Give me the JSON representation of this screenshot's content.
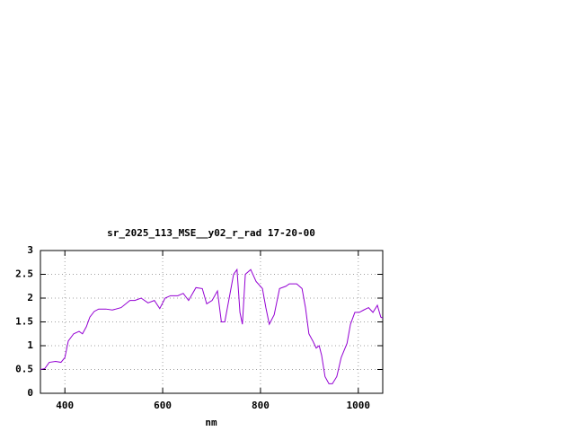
{
  "chart_data": {
    "type": "line",
    "title": "sr_2025_113_MSE__y02_r_rad 17-20-00",
    "x_label": "nm",
    "x": [
      350,
      359,
      368,
      381,
      392,
      400,
      407,
      418,
      429,
      436,
      444,
      451,
      460,
      469,
      484,
      497,
      515,
      533,
      543,
      556,
      570,
      583,
      594,
      605,
      616,
      631,
      642,
      653,
      668,
      681,
      690,
      701,
      712,
      720,
      727,
      736,
      745,
      752,
      758,
      763,
      769,
      780,
      791,
      804,
      811,
      818,
      828,
      839,
      852,
      859,
      874,
      885,
      892,
      899,
      907,
      914,
      920,
      925,
      932,
      940,
      947,
      956,
      965,
      977,
      984,
      993,
      1002,
      1011,
      1021,
      1030,
      1039,
      1046,
      1050
    ],
    "series": [
      {
        "color": "#9400d3",
        "values": [
          0.5,
          0.52,
          0.65,
          0.67,
          0.65,
          0.75,
          1.1,
          1.25,
          1.3,
          1.25,
          1.4,
          1.6,
          1.72,
          1.77,
          1.77,
          1.75,
          1.8,
          1.95,
          1.95,
          2.0,
          1.9,
          1.95,
          1.78,
          2.0,
          2.05,
          2.05,
          2.1,
          1.95,
          2.22,
          2.2,
          1.88,
          1.95,
          2.15,
          1.5,
          1.5,
          2.0,
          2.5,
          2.6,
          1.7,
          1.45,
          2.5,
          2.6,
          2.35,
          2.2,
          1.8,
          1.45,
          1.65,
          2.2,
          2.25,
          2.3,
          2.3,
          2.2,
          1.8,
          1.25,
          1.1,
          0.95,
          1.0,
          0.8,
          0.35,
          0.2,
          0.2,
          0.35,
          0.75,
          1.05,
          1.45,
          1.7,
          1.7,
          1.75,
          1.8,
          1.7,
          1.85,
          1.6,
          1.58
        ]
      }
    ],
    "xlim": [
      350,
      1050
    ],
    "xticks": [
      400,
      600,
      800,
      1000
    ],
    "ylim": [
      0,
      3
    ],
    "yticks": [
      0,
      0.5,
      1,
      1.5,
      2,
      2.5,
      3
    ],
    "grid": true
  }
}
